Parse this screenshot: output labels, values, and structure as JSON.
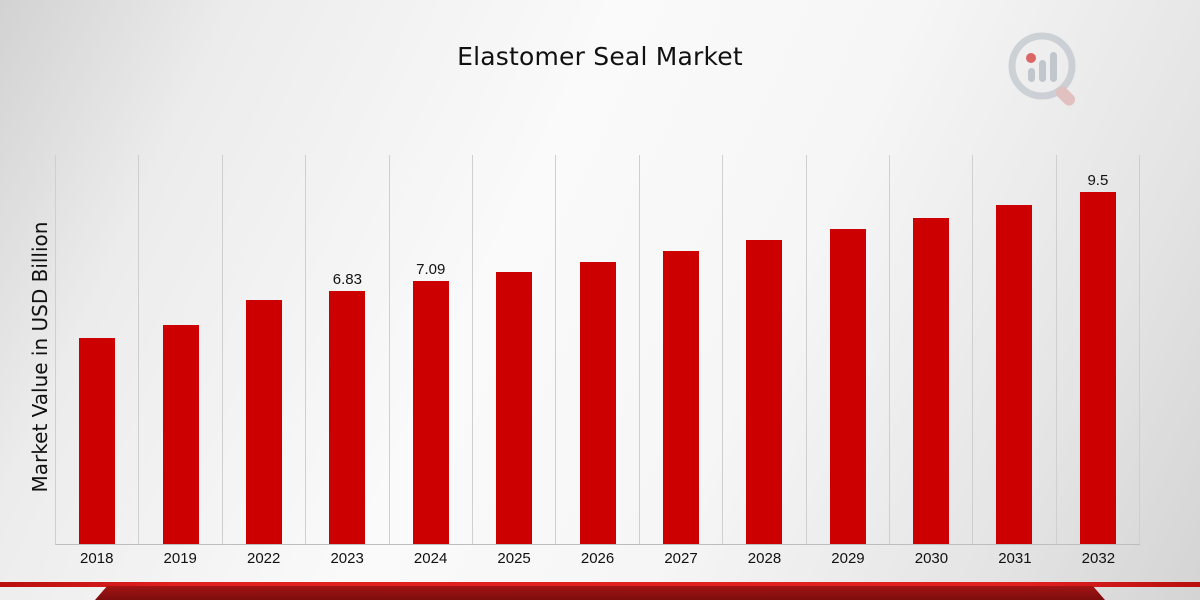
{
  "title": "Elastomer Seal Market",
  "y_axis_label": "Market Value in USD Billion",
  "colors": {
    "bar": "#CC0001",
    "gridline": "#cfcfcf",
    "axis_line": "#bdbdbd",
    "footer_strip_red": "#e32020",
    "footer_band_dark_red": "#7c0d0d",
    "title_text": "#111111"
  },
  "logo_icon": "magnifier-bar-chart-icon",
  "chart_data": {
    "type": "bar",
    "title": "Elastomer Seal Market",
    "xlabel": "",
    "ylabel": "Market Value in USD Billion",
    "ylim": [
      0,
      10.5
    ],
    "grid": "vertical lines between categories, no horizontal gridlines, y tick labels hidden",
    "legend": "none",
    "bar_color": "#CC0001",
    "categories": [
      "2018",
      "2019",
      "2022",
      "2023",
      "2024",
      "2025",
      "2026",
      "2027",
      "2028",
      "2029",
      "2030",
      "2031",
      "2032"
    ],
    "values": [
      5.55,
      5.9,
      6.6,
      6.83,
      7.09,
      7.35,
      7.6,
      7.9,
      8.2,
      8.5,
      8.8,
      9.15,
      9.5
    ],
    "bar_labels": [
      "",
      "",
      "",
      "6.83",
      "7.09",
      "",
      "",
      "",
      "",
      "",
      "",
      "",
      "9.5"
    ]
  }
}
